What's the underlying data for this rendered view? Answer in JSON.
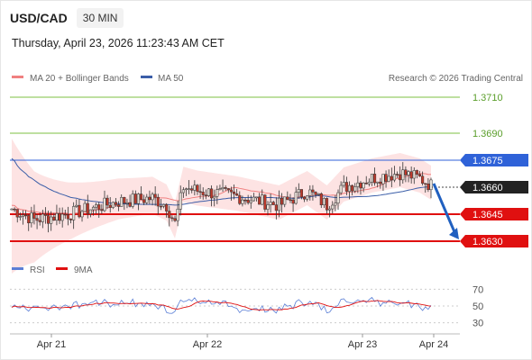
{
  "header": {
    "symbol": "USD/CAD",
    "timeframe": "30 MIN",
    "datetime": "Thursday, April 23, 2026 11:23:43 AM CET"
  },
  "legend": {
    "ma20": "MA 20 + Bollinger Bands",
    "ma50": "MA 50",
    "rsi": "RSI",
    "ma9": "9MA",
    "credit": "Research © 2026 Trading Central"
  },
  "colors": {
    "ma20": "#f08080",
    "ma50": "#3b5ea8",
    "bands_fill": "#fde3e3",
    "support": "#e01010",
    "resistance_blue": "#2f62d8",
    "target_green": "#7cc242",
    "candle_up": "#e8e0d8",
    "candle_down": "#c0392b",
    "current_price_bg": "#222222",
    "rsi": "#5b7fd6"
  },
  "chart_data": [
    {
      "type": "line",
      "title": "USD/CAD",
      "x_ticks": [
        "Apr 21",
        "Apr 22",
        "Apr 23",
        "Apr 24"
      ],
      "price_range": [
        1.3622,
        1.3722
      ],
      "levels": [
        {
          "value": "1.3710",
          "kind": "target"
        },
        {
          "value": "1.3690",
          "kind": "target"
        },
        {
          "value": "1.3675",
          "kind": "pivot"
        },
        {
          "value": "1.3660",
          "kind": "last"
        },
        {
          "value": "1.3645",
          "kind": "support"
        },
        {
          "value": "1.3630",
          "kind": "support"
        }
      ],
      "series": [
        {
          "name": "MA 20 + Bollinger Bands"
        },
        {
          "name": "MA 50"
        }
      ],
      "arrow": {
        "from": 1.3662,
        "to": 1.3631
      }
    },
    {
      "type": "line",
      "y_ticks": [
        "70",
        "50",
        "30"
      ],
      "y_range": [
        20,
        80
      ],
      "series": [
        {
          "name": "RSI"
        },
        {
          "name": "9MA"
        }
      ]
    }
  ]
}
